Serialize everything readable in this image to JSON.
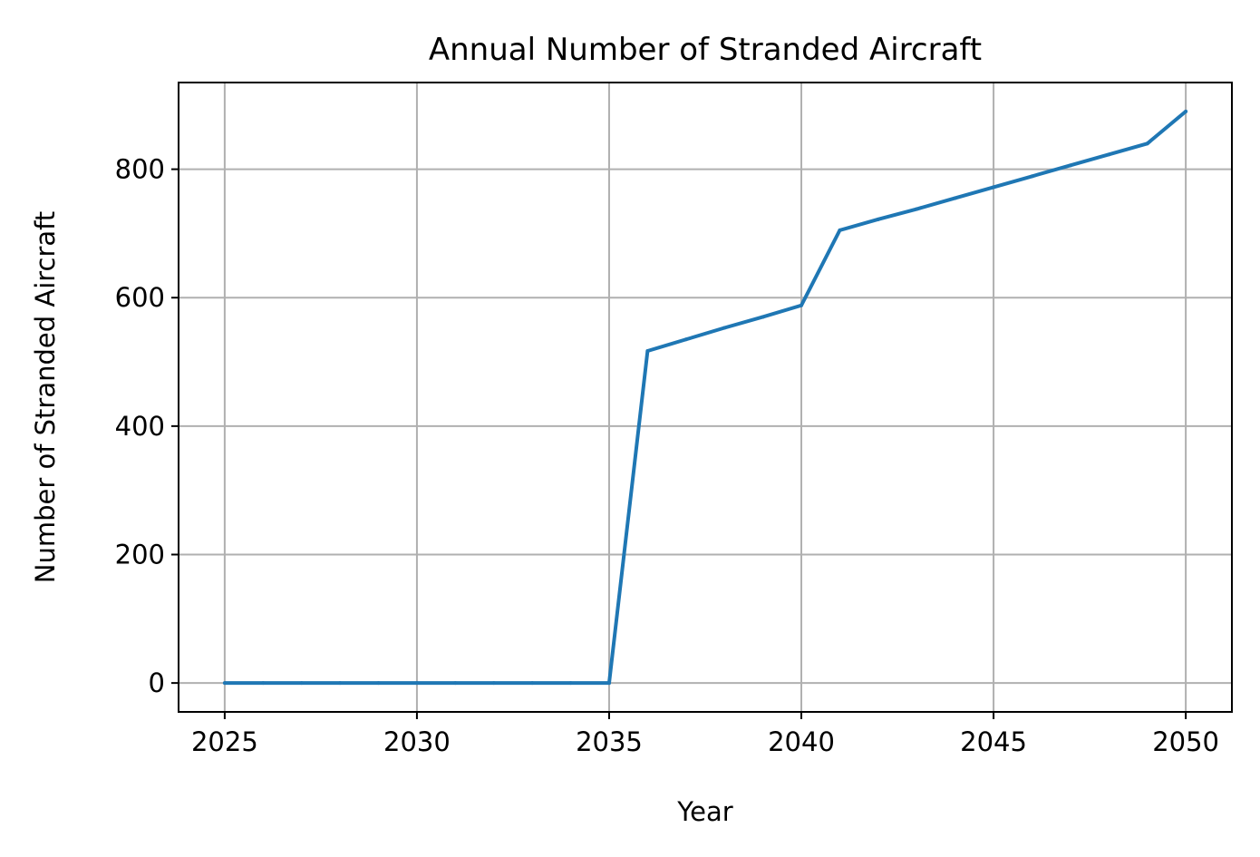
{
  "chart_data": {
    "type": "line",
    "title": "Annual Number of Stranded Aircraft",
    "xlabel": "Year",
    "ylabel": "Number of Stranded Aircraft",
    "xlim": [
      2023.8,
      2051.2
    ],
    "ylim": [
      -45,
      935
    ],
    "xticks": [
      2025,
      2030,
      2035,
      2040,
      2045,
      2050
    ],
    "yticks": [
      0,
      200,
      400,
      600,
      800
    ],
    "grid": true,
    "series": [
      {
        "color": "#1f77b4",
        "x": [
          2025,
          2026,
          2027,
          2028,
          2029,
          2030,
          2031,
          2032,
          2033,
          2034,
          2035,
          2036,
          2037,
          2038,
          2039,
          2040,
          2041,
          2042,
          2043,
          2044,
          2045,
          2046,
          2047,
          2048,
          2049,
          2050
        ],
        "y": [
          0,
          0,
          0,
          0,
          0,
          0,
          0,
          0,
          0,
          0,
          0,
          517,
          535,
          553,
          570,
          588,
          705,
          722,
          738,
          755,
          772,
          789,
          806,
          823,
          840,
          890
        ]
      }
    ]
  }
}
